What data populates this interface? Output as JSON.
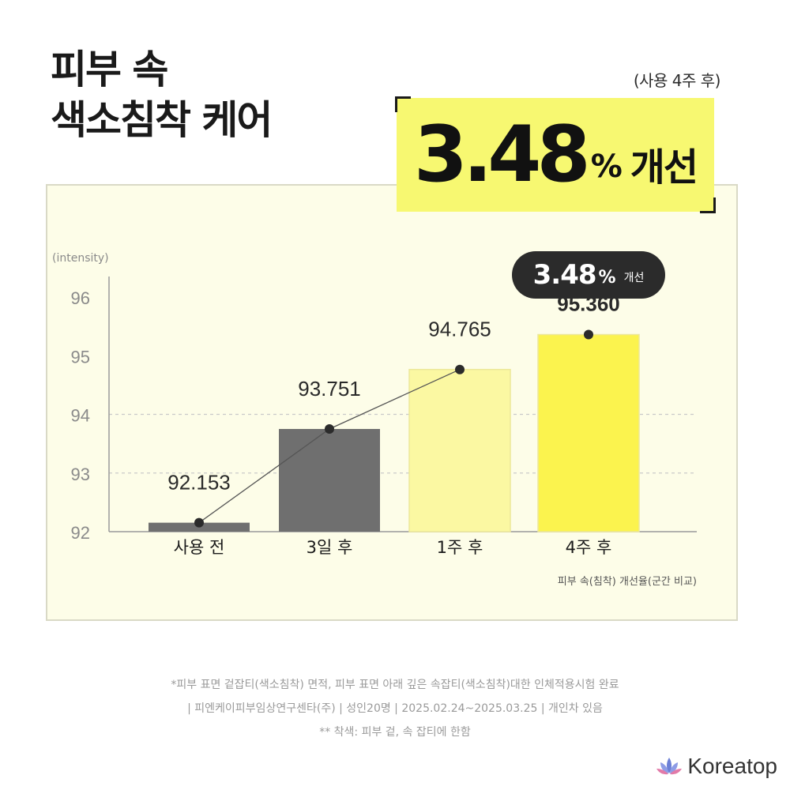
{
  "headline": {
    "line1": "피부 속",
    "line2": "색소침착 케어"
  },
  "period": "(사용 4주 후)",
  "highlight": {
    "number": "3.48",
    "percent": "%",
    "word": "개선"
  },
  "badge": {
    "number": "3.48",
    "percent": "%",
    "word": "개선"
  },
  "chart_data": {
    "type": "bar",
    "ylabel": "(intensity)",
    "ylim": [
      92,
      96
    ],
    "yticks": [
      92,
      93,
      94,
      95,
      96
    ],
    "grid": "dashed at 93 and 94",
    "categories": [
      "사용 전",
      "3일 후",
      "1주 후",
      "4주 후"
    ],
    "values": [
      92.153,
      93.751,
      94.765,
      95.36
    ],
    "value_labels": [
      "92.153",
      "93.751",
      "94.765",
      "95.360"
    ],
    "bar_colors": [
      "#6f6f6f",
      "#6f6f6f",
      "#fbf8a2",
      "#fbf34e"
    ],
    "caption": "피부 속(침착) 개선율(군간 비교)"
  },
  "footnotes": [
    "*피부 표면 겉잡티(색소침착) 면적, 피부 표면 아래 깊은 속잡티(색소침착)대한 인체적용시험 완료",
    "| 피엔케이피부임상연구센타(주) | 성인20명 | 2025.02.24~2025.03.25 | 개인차 있음",
    "** 착색: 피부 겉, 속 잡티에 한함"
  ],
  "brand": {
    "name": "Koreatop",
    "logo_icon": "lotus-icon",
    "logo_color": "#6b7fd6"
  }
}
